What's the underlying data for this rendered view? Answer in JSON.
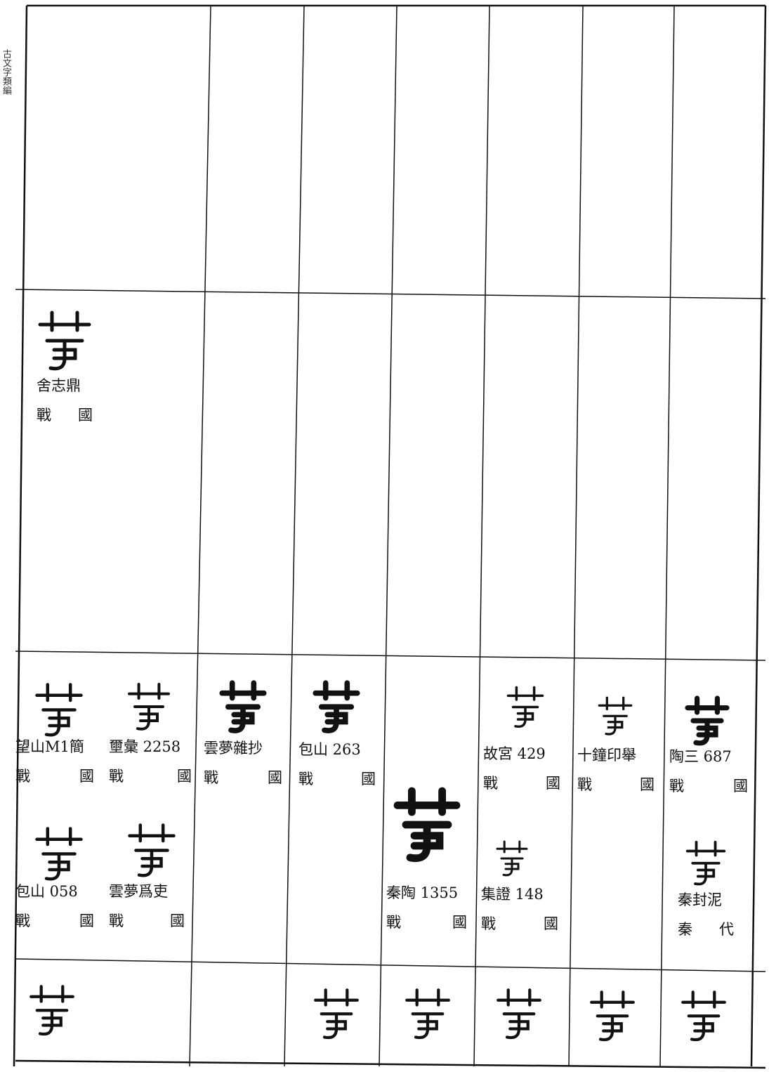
{
  "margin_label": "古文字類編",
  "table": {
    "middle_row": [
      [
        {
          "source": "舍志鼎",
          "period": "戰國"
        }
      ]
    ],
    "lower_row": [
      [
        {
          "source": "望山M1簡",
          "period": "戰國"
        },
        {
          "source": "壐彙 2258",
          "period": "戰國"
        },
        {
          "source": "包山 058",
          "period": "戰國"
        },
        {
          "source": "雲夢爲吏",
          "period": "戰國"
        }
      ],
      [
        {
          "source": "雲夢雜抄",
          "period": "戰國"
        }
      ],
      [
        {
          "source": "包山 263",
          "period": "戰國"
        }
      ],
      [
        {
          "source": "秦陶 1355",
          "period": "戰國"
        }
      ],
      [
        {
          "source": "故宮 429",
          "period": "戰國"
        },
        {
          "source": "集證 148",
          "period": "戰國"
        }
      ],
      [
        {
          "source": "十鐘印舉",
          "period": "戰國"
        }
      ],
      [
        {
          "source": "陶三 687",
          "period": "戰國"
        },
        {
          "source": "秦封泥",
          "period": "秦代"
        }
      ]
    ]
  }
}
